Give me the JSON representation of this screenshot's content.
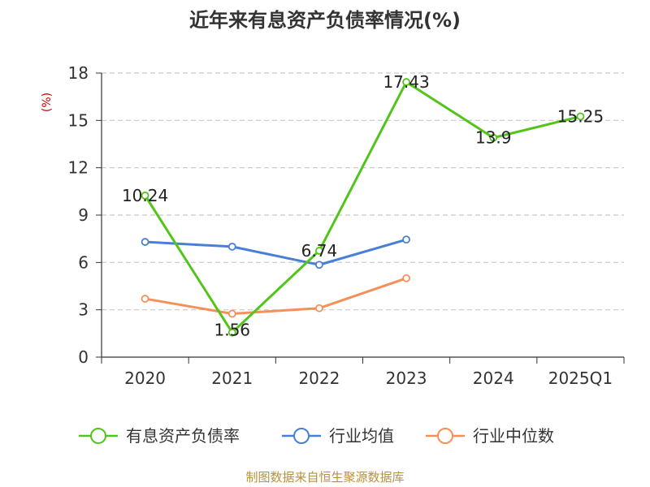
{
  "chart_data": {
    "type": "line",
    "title": "近年来有息资产负债率情况(%)",
    "ylabel": "(%)",
    "xlabel": "",
    "categories": [
      "2020",
      "2021",
      "2022",
      "2023",
      "2024",
      "2025Q1"
    ],
    "ylim": [
      0,
      18
    ],
    "yticks": [
      0,
      3,
      6,
      9,
      12,
      15,
      18
    ],
    "grid": true,
    "legend_position": "bottom",
    "series": [
      {
        "name": "有息资产负债率",
        "color": "#52c41a",
        "values": [
          10.24,
          1.56,
          6.74,
          17.43,
          13.9,
          15.25
        ],
        "labels": [
          "10.24",
          "1.56",
          "6.74",
          "17.43",
          "13.9",
          "15.25"
        ]
      },
      {
        "name": "行业均值",
        "color": "#4a7fd6",
        "values": [
          7.3,
          7.0,
          5.85,
          7.45,
          null,
          null
        ],
        "labels": null
      },
      {
        "name": "行业中位数",
        "color": "#f5905a",
        "values": [
          3.7,
          2.75,
          3.1,
          5.0,
          null,
          null
        ],
        "labels": null
      }
    ],
    "source": "制图数据来自恒生聚源数据库"
  }
}
